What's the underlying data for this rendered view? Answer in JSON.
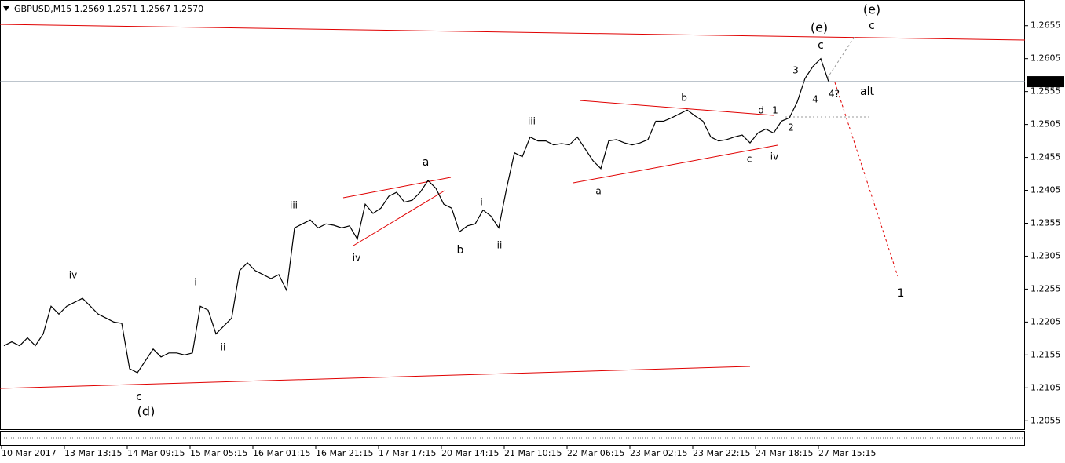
{
  "chart_data": {
    "type": "line",
    "title": "GBPUSD,M15  1.2569 1.2571 1.2567 1.2570",
    "categories": [
      "10 Mar 2017",
      null,
      null,
      null,
      null,
      null,
      null,
      null,
      "13 Mar 13:15",
      null,
      null,
      null,
      null,
      null,
      null,
      null,
      "14 Mar 09:15",
      null,
      null,
      null,
      null,
      null,
      null,
      null,
      "15 Mar 05:15",
      null,
      null,
      null,
      null,
      null,
      null,
      null,
      "16 Mar 01:15",
      null,
      null,
      null,
      null,
      null,
      null,
      null,
      "16 Mar 21:15",
      null,
      null,
      null,
      null,
      null,
      null,
      null,
      "17 Mar 17:15",
      null,
      null,
      null,
      null,
      null,
      null,
      null,
      "20 Mar 14:15",
      null,
      null,
      null,
      null,
      null,
      null,
      null,
      "21 Mar 10:15",
      null,
      null,
      null,
      null,
      null,
      null,
      null,
      "22 Mar 06:15",
      null,
      null,
      null,
      null,
      null,
      null,
      null,
      "23 Mar 02:15",
      null,
      null,
      null,
      null,
      null,
      null,
      null,
      "23 Mar 22:15",
      null,
      null,
      null,
      null,
      null,
      null,
      null,
      "24 Mar 18:15",
      null,
      null,
      null,
      null,
      null,
      null,
      null,
      "27 Mar 15:15",
      null
    ],
    "values": [
      1.2169,
      1.2175,
      1.2169,
      1.2181,
      1.2169,
      1.2187,
      1.2229,
      1.2217,
      1.2229,
      1.2235,
      1.2241,
      1.2229,
      1.2217,
      1.2211,
      1.2205,
      1.2203,
      1.2134,
      1.2128,
      1.2146,
      1.2164,
      1.2152,
      1.2158,
      1.2158,
      1.2155,
      1.2158,
      1.2229,
      1.2223,
      1.2187,
      1.2199,
      1.2211,
      1.2283,
      1.2295,
      1.2283,
      1.2277,
      1.2271,
      1.2277,
      1.2253,
      1.2348,
      1.2354,
      1.236,
      1.2348,
      1.2354,
      1.2352,
      1.2348,
      1.2351,
      1.2331,
      1.2384,
      1.237,
      1.2378,
      1.2396,
      1.2402,
      1.2387,
      1.239,
      1.2402,
      1.242,
      1.2408,
      1.2384,
      1.2378,
      1.2342,
      1.2351,
      1.2354,
      1.2375,
      1.2366,
      1.2348,
      1.2408,
      1.2462,
      1.2456,
      1.2486,
      1.248,
      1.248,
      1.2474,
      1.2476,
      1.2474,
      1.2486,
      1.2468,
      1.245,
      1.2438,
      1.248,
      1.2482,
      1.2477,
      1.2474,
      1.2477,
      1.2482,
      1.251,
      1.251,
      1.2515,
      1.2521,
      1.2527,
      1.2518,
      1.251,
      1.2486,
      1.248,
      1.2482,
      1.2486,
      1.2489,
      1.2477,
      1.2492,
      1.2498,
      1.2492,
      1.251,
      1.2515,
      1.2539,
      1.2575,
      1.2593,
      1.2605,
      1.257
    ],
    "color": "#000000",
    "ylim": [
      1.2041,
      1.2694
    ],
    "yticks": [
      1.2655,
      1.2605,
      1.2555,
      1.2505,
      1.2455,
      1.2405,
      1.2355,
      1.2305,
      1.2255,
      1.2205,
      1.2155,
      1.2105,
      1.2055
    ],
    "last_price": {
      "value": 1.257,
      "label": "1.2570"
    },
    "grid": false,
    "annotations": [
      {
        "text": "iv",
        "color": "#0000cc"
      },
      {
        "text": "i",
        "color": "#0000cc"
      },
      {
        "text": "ii",
        "color": "#0000cc"
      },
      {
        "text": "c",
        "color": "#e00000"
      },
      {
        "text": "(d)",
        "color": "#0000cc"
      },
      {
        "text": "iii",
        "color": "#0000cc"
      },
      {
        "text": "iv",
        "color": "#0000cc"
      },
      {
        "text": "a",
        "color": "#e00000"
      },
      {
        "text": "b",
        "color": "#e00000"
      },
      {
        "text": "i",
        "color": "#0000cc"
      },
      {
        "text": "ii",
        "color": "#0000cc"
      },
      {
        "text": "iii",
        "color": "#0000cc"
      },
      {
        "text": "a",
        "color": "#008000"
      },
      {
        "text": "b",
        "color": "#008000"
      },
      {
        "text": "c",
        "color": "#008000"
      },
      {
        "text": "d",
        "color": "#008000"
      },
      {
        "text": "1",
        "color": "#008000"
      },
      {
        "text": "iv",
        "color": "#0000cc"
      },
      {
        "text": "2",
        "color": "#008000"
      },
      {
        "text": "3",
        "color": "#008000"
      },
      {
        "text": "4",
        "color": "#008000"
      },
      {
        "text": "4?",
        "color": "#999999"
      },
      {
        "text": "c",
        "color": "#e00000"
      },
      {
        "text": "(e)",
        "color": "#0000cc"
      },
      {
        "text": "(e)",
        "color": "#999999"
      },
      {
        "text": "c",
        "color": "#999999"
      },
      {
        "text": "alt",
        "color": "#999999"
      },
      {
        "text": "1",
        "color": "#e00000"
      }
    ]
  }
}
